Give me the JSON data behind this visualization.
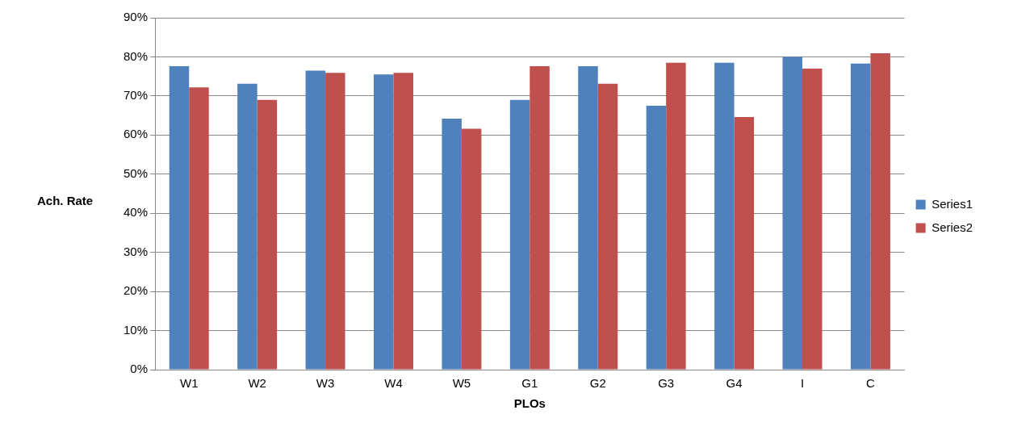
{
  "chart_data": {
    "type": "bar",
    "xlabel": "PLOs",
    "ylabel": "Ach. Rate",
    "categories": [
      "W1",
      "W2",
      "W3",
      "W4",
      "W5",
      "G1",
      "G2",
      "G3",
      "G4",
      "I",
      "C"
    ],
    "series": [
      {
        "name": "Series1",
        "color": "#4f81bd",
        "values": [
          77.6,
          73.1,
          76.5,
          75.5,
          64.2,
          69.0,
          77.6,
          67.5,
          78.5,
          80.0,
          78.3
        ]
      },
      {
        "name": "Series2",
        "color": "#c0504d",
        "values": [
          72.2,
          69.0,
          75.9,
          75.9,
          61.6,
          77.6,
          73.1,
          78.5,
          64.6,
          77.0,
          80.9
        ]
      }
    ],
    "ylim": [
      0,
      90
    ],
    "yticks": [
      {
        "value": 0,
        "label": "0%"
      },
      {
        "value": 10,
        "label": "10%"
      },
      {
        "value": 20,
        "label": "20%"
      },
      {
        "value": 30,
        "label": "30%"
      },
      {
        "value": 40,
        "label": "40%"
      },
      {
        "value": 50,
        "label": "50%"
      },
      {
        "value": 60,
        "label": "60%"
      },
      {
        "value": 70,
        "label": "70%"
      },
      {
        "value": 80,
        "label": "80%"
      },
      {
        "value": 90,
        "label": "90%"
      }
    ],
    "grid": "y",
    "legend": "right"
  }
}
